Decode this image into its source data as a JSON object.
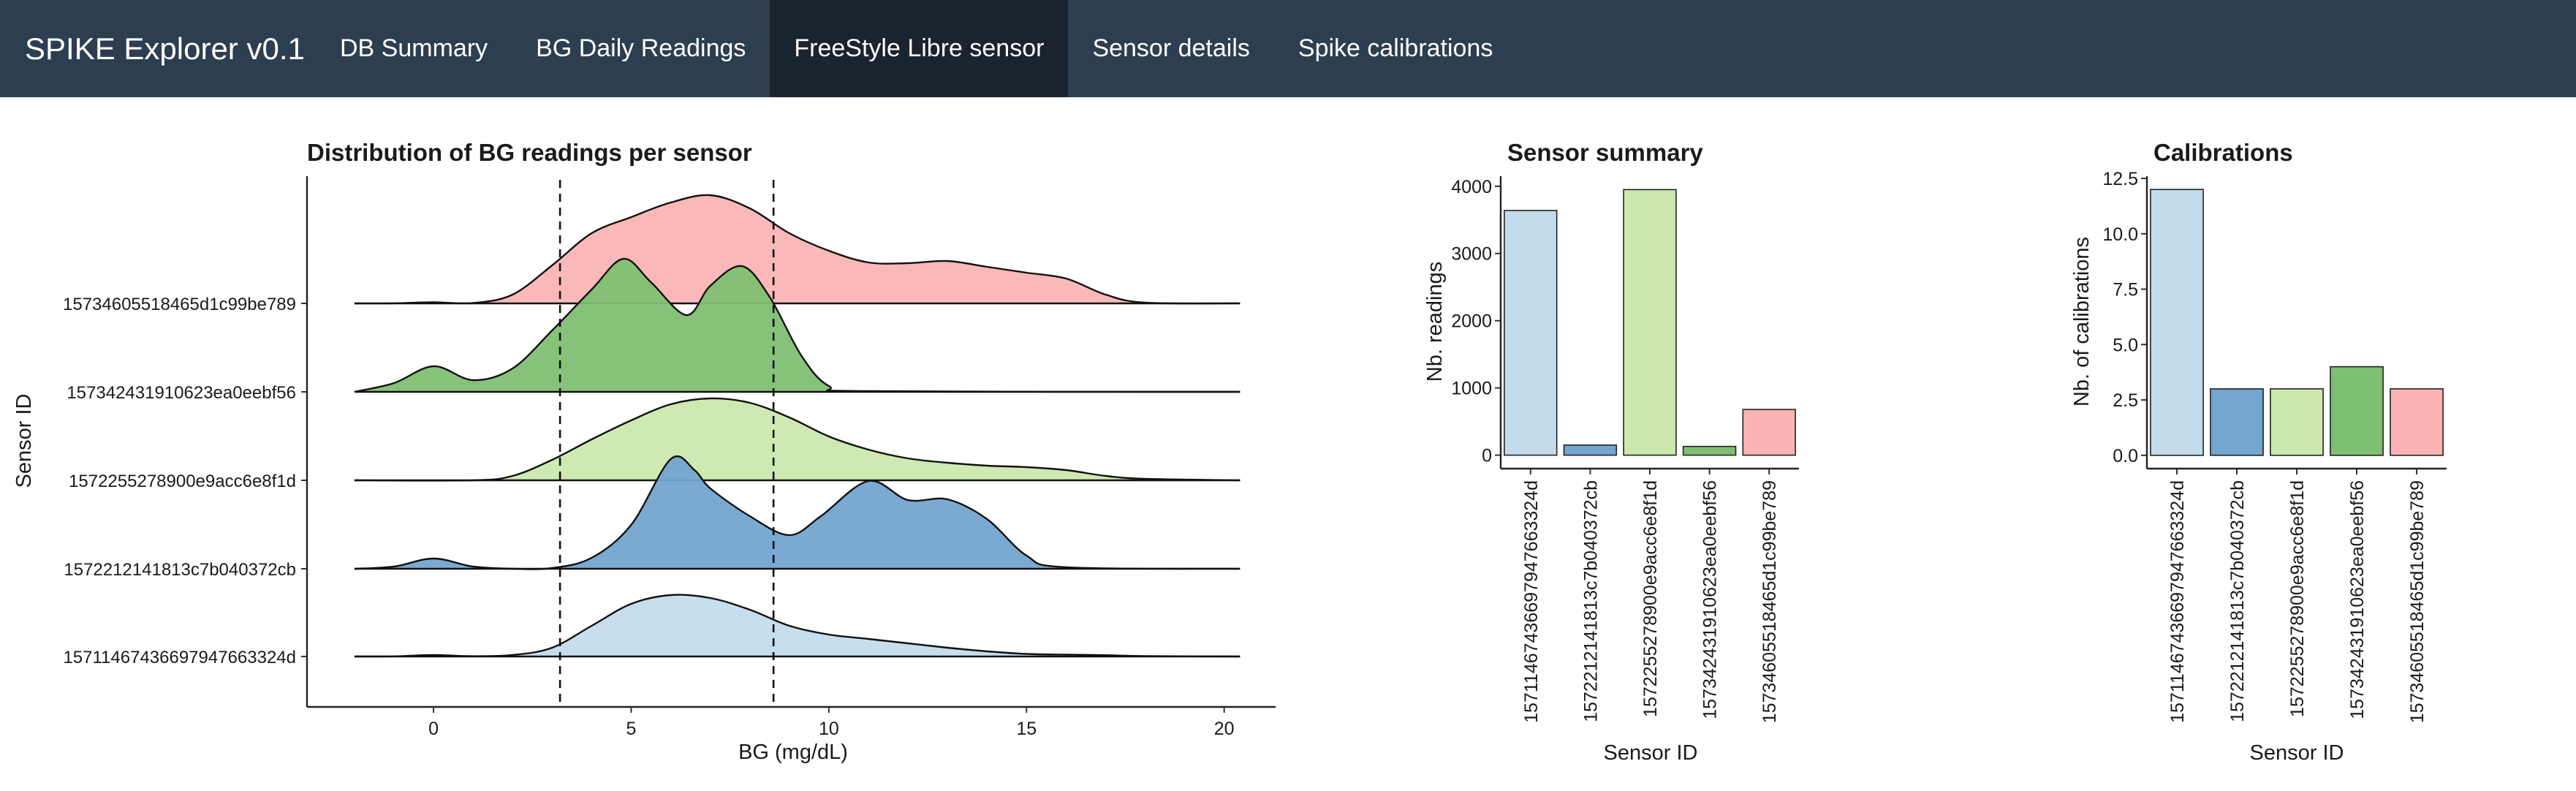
{
  "navbar": {
    "brand": "SPIKE Explorer v0.1",
    "items": [
      {
        "label": "DB Summary",
        "active": false
      },
      {
        "label": "BG Daily Readings",
        "active": false
      },
      {
        "label": "FreeStyle Libre sensor",
        "active": true
      },
      {
        "label": "Sensor details",
        "active": false
      },
      {
        "label": "Spike calibrations",
        "active": false
      }
    ],
    "colors": {
      "background": "#2c3e50",
      "active": "#1a242f"
    }
  },
  "chart_data": [
    {
      "type": "ridgeline",
      "title": "Distribution of BG readings per sensor",
      "xlabel": "BG (mg/dL)",
      "ylabel": "Sensor ID",
      "xlim": [
        -3.2,
        21.3
      ],
      "xticks": [
        0,
        5,
        10,
        15,
        20
      ],
      "vlines": [
        3.2,
        8.6
      ],
      "grid": false,
      "series": [
        {
          "name": "15711467436697947663324d",
          "color": "#c3dcec",
          "density": [
            [
              -2,
              0
            ],
            [
              -1,
              0.002
            ],
            [
              0,
              0.02
            ],
            [
              1,
              0.004
            ],
            [
              2,
              0.02
            ],
            [
              3,
              0.12
            ],
            [
              4,
              0.42
            ],
            [
              5,
              0.72
            ],
            [
              6,
              0.84
            ],
            [
              7,
              0.8
            ],
            [
              8,
              0.64
            ],
            [
              9,
              0.42
            ],
            [
              10,
              0.3
            ],
            [
              11,
              0.24
            ],
            [
              12,
              0.18
            ],
            [
              13,
              0.12
            ],
            [
              14,
              0.07
            ],
            [
              15,
              0.035
            ],
            [
              16,
              0.025
            ],
            [
              17,
              0.018
            ],
            [
              18,
              0.005
            ],
            [
              20.4,
              0
            ]
          ]
        },
        {
          "name": "1572212141813c7b040372cb",
          "color": "#73a5cf",
          "density": [
            [
              -2,
              0
            ],
            [
              -1,
              0.03
            ],
            [
              0,
              0.14
            ],
            [
              1,
              0.03
            ],
            [
              2,
              0
            ],
            [
              3,
              0.01
            ],
            [
              4,
              0.15
            ],
            [
              5,
              0.6
            ],
            [
              6,
              1.5
            ],
            [
              6.6,
              1.35
            ],
            [
              7,
              1.1
            ],
            [
              8,
              0.72
            ],
            [
              9,
              0.46
            ],
            [
              9.8,
              0.72
            ],
            [
              11,
              1.2
            ],
            [
              12,
              0.94
            ],
            [
              13,
              0.95
            ],
            [
              14,
              0.68
            ],
            [
              15,
              0.18
            ],
            [
              16,
              0.02
            ],
            [
              20.4,
              0
            ]
          ]
        },
        {
          "name": "1572255278900e9acc6e8f1d",
          "color": "#cbe9ae",
          "density": [
            [
              -2,
              0
            ],
            [
              1,
              0
            ],
            [
              2,
              0.06
            ],
            [
              3,
              0.28
            ],
            [
              4,
              0.56
            ],
            [
              5,
              0.82
            ],
            [
              6,
              1.04
            ],
            [
              7,
              1.12
            ],
            [
              8,
              1.06
            ],
            [
              9,
              0.86
            ],
            [
              10,
              0.6
            ],
            [
              11,
              0.42
            ],
            [
              12,
              0.3
            ],
            [
              13,
              0.24
            ],
            [
              14,
              0.2
            ],
            [
              15,
              0.18
            ],
            [
              16,
              0.14
            ],
            [
              17,
              0.06
            ],
            [
              18,
              0.02
            ],
            [
              20.4,
              0
            ]
          ]
        },
        {
          "name": "157342431910623ea0eebf56",
          "color": "#7fbf72",
          "density": [
            [
              -2,
              0
            ],
            [
              -1,
              0.12
            ],
            [
              0,
              0.35
            ],
            [
              1,
              0.16
            ],
            [
              2,
              0.32
            ],
            [
              3,
              0.84
            ],
            [
              4,
              1.4
            ],
            [
              4.8,
              1.82
            ],
            [
              5.5,
              1.5
            ],
            [
              6.4,
              1.05
            ],
            [
              7,
              1.45
            ],
            [
              7.8,
              1.72
            ],
            [
              8.5,
              1.3
            ],
            [
              9.3,
              0.5
            ],
            [
              10,
              0.08
            ],
            [
              11,
              0.01
            ],
            [
              20.4,
              0
            ]
          ]
        },
        {
          "name": "15734605518465d1c99be789",
          "color": "#fbb4b4",
          "density": [
            [
              -2,
              0
            ],
            [
              -1,
              0.001
            ],
            [
              0,
              0.015
            ],
            [
              1,
              0.005
            ],
            [
              2,
              0.12
            ],
            [
              3,
              0.52
            ],
            [
              4,
              0.96
            ],
            [
              5,
              1.18
            ],
            [
              6,
              1.38
            ],
            [
              7,
              1.48
            ],
            [
              8,
              1.3
            ],
            [
              9,
              0.96
            ],
            [
              10,
              0.72
            ],
            [
              11,
              0.56
            ],
            [
              12,
              0.55
            ],
            [
              13,
              0.58
            ],
            [
              14,
              0.5
            ],
            [
              15,
              0.42
            ],
            [
              16,
              0.34
            ],
            [
              17,
              0.12
            ],
            [
              18,
              0.01
            ],
            [
              20.4,
              0
            ]
          ]
        }
      ]
    },
    {
      "type": "bar",
      "title": "Sensor summary",
      "xlabel": "Sensor ID",
      "ylabel": "Nb. readings",
      "ylim": [
        -200,
        4150
      ],
      "yticks": [
        0,
        1000,
        2000,
        3000,
        4000
      ],
      "categories": [
        "15711467436697947663324d",
        "1572212141813c7b040372cb",
        "1572255278900e9acc6e8f1d",
        "157342431910623ea0eebf56",
        "15734605518465d1c99be789"
      ],
      "values": [
        3640,
        150,
        3950,
        130,
        680
      ],
      "colors": [
        "#c3dcec",
        "#73a5cf",
        "#cbe9ae",
        "#7fbf72",
        "#fbb4b4"
      ],
      "grid": false,
      "legend": "none"
    },
    {
      "type": "bar",
      "title": "Calibrations",
      "xlabel": "Sensor ID",
      "ylabel": "Nb. of calibrations",
      "ylim": [
        -0.6,
        12.6
      ],
      "yticks": [
        0.0,
        2.5,
        5.0,
        7.5,
        10.0,
        12.5
      ],
      "yticklabels": [
        "0.0",
        "2.5",
        "5.0",
        "7.5",
        "10.0",
        "12.5"
      ],
      "categories": [
        "15711467436697947663324d",
        "1572212141813c7b040372cb",
        "1572255278900e9acc6e8f1d",
        "157342431910623ea0eebf56",
        "15734605518465d1c99be789"
      ],
      "values": [
        12,
        3,
        3,
        4,
        3
      ],
      "colors": [
        "#c3dcec",
        "#73a5cf",
        "#cbe9ae",
        "#7fbf72",
        "#fbb4b4"
      ],
      "grid": false,
      "legend": "none"
    }
  ]
}
